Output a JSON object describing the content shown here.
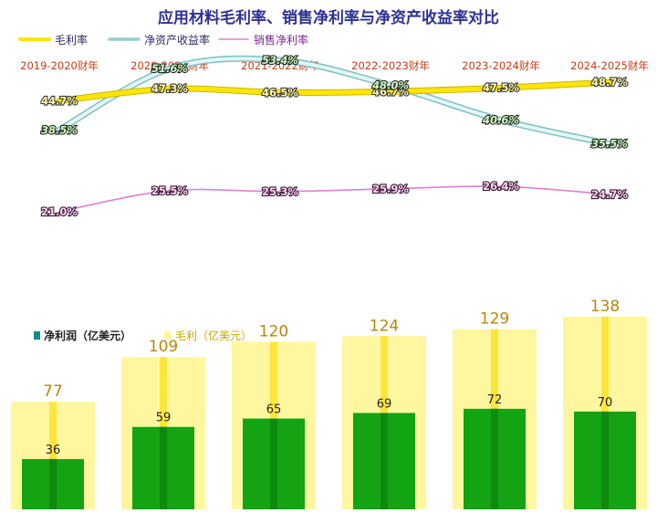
{
  "chart_data": [
    {
      "type": "line",
      "title": "应用材料毛利率、销售净利率与净资产收益率对比",
      "categories": [
        "2019-2020财年",
        "2020-2021财年",
        "2021-2022财年",
        "2022-2023财年",
        "2023-2024财年",
        "2024-2025财年"
      ],
      "series": [
        {
          "name": "毛利率",
          "values": [
            44.7,
            47.3,
            46.5,
            46.7,
            47.5,
            48.7
          ],
          "labels": [
            "44.7%",
            "47.3%",
            "46.5%",
            "46.7%",
            "47.5%",
            "48.7%"
          ],
          "color": "#ffe500"
        },
        {
          "name": "净资产收益率",
          "values": [
            38.5,
            51.6,
            53.4,
            48.0,
            40.6,
            35.5
          ],
          "labels": [
            "38.5%",
            "51.6%",
            "53.4%",
            "48.0%",
            "40.6%",
            "35.5%"
          ],
          "color": "#a9d9db"
        },
        {
          "name": "销售净利率",
          "values": [
            21.0,
            25.5,
            25.3,
            25.9,
            26.4,
            24.7
          ],
          "labels": [
            "21.0%",
            "25.5%",
            "25.3%",
            "25.9%",
            "26.4%",
            "24.7%"
          ],
          "color": "#e07fd0"
        }
      ],
      "legend": "top-left",
      "grid": false
    },
    {
      "type": "bar",
      "categories": [
        "2019-2020财年",
        "2020-2021财年",
        "2021-2022财年",
        "2022-2023财年",
        "2023-2024财年",
        "2024-2025财年"
      ],
      "series": [
        {
          "name": "净利润（亿美元）",
          "values": [
            36,
            59,
            65,
            69,
            72,
            70
          ],
          "labels": [
            "36",
            "59",
            "65",
            "69",
            "72",
            "70"
          ],
          "color": "#13a313"
        },
        {
          "name": "毛利（亿美元）",
          "values": [
            77,
            109,
            120,
            124,
            129,
            138
          ],
          "labels": [
            "77",
            "109",
            "120",
            "124",
            "129",
            "138"
          ],
          "color": "#fff59a"
        }
      ],
      "legend": "top-left",
      "grid": false
    }
  ]
}
